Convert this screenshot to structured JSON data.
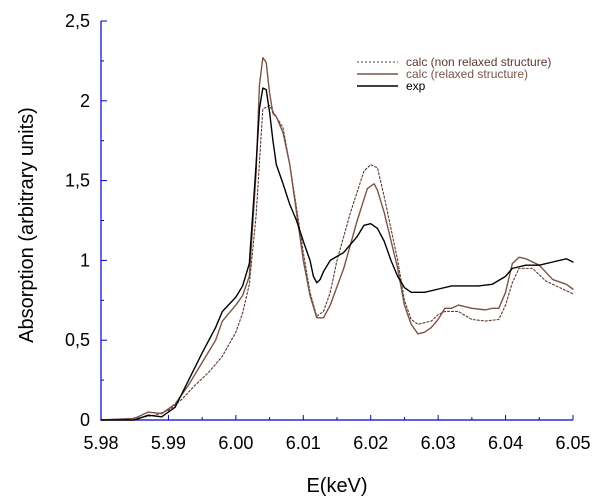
{
  "chart_data": {
    "type": "line",
    "xlabel": "E(keV)",
    "ylabel": "Absorption (arbitrary units)",
    "xlim": [
      5.98,
      6.05
    ],
    "ylim": [
      0,
      2.5
    ],
    "x_ticks": [
      {
        "value": 5.98,
        "label": "5.98"
      },
      {
        "value": 5.99,
        "label": "5.99"
      },
      {
        "value": 6.0,
        "label": "6.00"
      },
      {
        "value": 6.01,
        "label": "6.01"
      },
      {
        "value": 6.02,
        "label": "6.02"
      },
      {
        "value": 6.03,
        "label": "6.03"
      },
      {
        "value": 6.04,
        "label": "6.04"
      },
      {
        "value": 6.05,
        "label": "6.05"
      }
    ],
    "y_ticks": [
      {
        "value": 0,
        "label": "0"
      },
      {
        "value": 0.5,
        "label": "0,5"
      },
      {
        "value": 1,
        "label": "1"
      },
      {
        "value": 1.5,
        "label": "1,5"
      },
      {
        "value": 2,
        "label": "2"
      },
      {
        "value": 2.5,
        "label": "2,5"
      }
    ],
    "grid": false,
    "legend_position": "top-right",
    "axis_color": "#0000cc",
    "series": [
      {
        "name": "calc (non relaxed structure)",
        "style": "dotted",
        "color": "#5a3a2e",
        "points": [
          [
            5.98,
            0.0
          ],
          [
            5.985,
            0.01
          ],
          [
            5.988,
            0.03
          ],
          [
            5.99,
            0.06
          ],
          [
            5.992,
            0.13
          ],
          [
            5.994,
            0.22
          ],
          [
            5.996,
            0.3
          ],
          [
            5.998,
            0.4
          ],
          [
            6.0,
            0.55
          ],
          [
            6.001,
            0.67
          ],
          [
            6.002,
            0.85
          ],
          [
            6.003,
            1.28
          ],
          [
            6.004,
            1.95
          ],
          [
            6.005,
            1.97
          ],
          [
            6.006,
            1.9
          ],
          [
            6.007,
            1.83
          ],
          [
            6.008,
            1.6
          ],
          [
            6.009,
            1.33
          ],
          [
            6.01,
            1.05
          ],
          [
            6.011,
            0.8
          ],
          [
            6.012,
            0.65
          ],
          [
            6.013,
            0.68
          ],
          [
            6.014,
            0.8
          ],
          [
            6.015,
            1.0
          ],
          [
            6.017,
            1.3
          ],
          [
            6.019,
            1.56
          ],
          [
            6.02,
            1.6
          ],
          [
            6.021,
            1.58
          ],
          [
            6.022,
            1.4
          ],
          [
            6.024,
            1.0
          ],
          [
            6.025,
            0.75
          ],
          [
            6.026,
            0.63
          ],
          [
            6.027,
            0.6
          ],
          [
            6.029,
            0.62
          ],
          [
            6.03,
            0.66
          ],
          [
            6.031,
            0.68
          ],
          [
            6.033,
            0.68
          ],
          [
            6.035,
            0.63
          ],
          [
            6.037,
            0.62
          ],
          [
            6.039,
            0.63
          ],
          [
            6.04,
            0.72
          ],
          [
            6.041,
            0.86
          ],
          [
            6.042,
            0.95
          ],
          [
            6.044,
            0.95
          ],
          [
            6.046,
            0.87
          ],
          [
            6.048,
            0.83
          ],
          [
            6.05,
            0.79
          ]
        ]
      },
      {
        "name": "calc (relaxed structure)",
        "style": "solid",
        "color": "#7a5448",
        "points": [
          [
            5.98,
            0.0
          ],
          [
            5.985,
            0.01
          ],
          [
            5.987,
            0.05
          ],
          [
            5.989,
            0.04
          ],
          [
            5.991,
            0.1
          ],
          [
            5.993,
            0.22
          ],
          [
            5.995,
            0.36
          ],
          [
            5.997,
            0.5
          ],
          [
            5.998,
            0.62
          ],
          [
            6.0,
            0.72
          ],
          [
            6.001,
            0.78
          ],
          [
            6.002,
            0.9
          ],
          [
            6.003,
            1.55
          ],
          [
            6.0035,
            2.1
          ],
          [
            6.004,
            2.27
          ],
          [
            6.0045,
            2.24
          ],
          [
            6.005,
            2.05
          ],
          [
            6.0055,
            1.92
          ],
          [
            6.006,
            1.9
          ],
          [
            6.007,
            1.8
          ],
          [
            6.008,
            1.6
          ],
          [
            6.009,
            1.3
          ],
          [
            6.01,
            1.0
          ],
          [
            6.011,
            0.78
          ],
          [
            6.012,
            0.64
          ],
          [
            6.013,
            0.64
          ],
          [
            6.014,
            0.72
          ],
          [
            6.016,
            0.95
          ],
          [
            6.018,
            1.25
          ],
          [
            6.0195,
            1.45
          ],
          [
            6.0205,
            1.48
          ],
          [
            6.021,
            1.44
          ],
          [
            6.022,
            1.3
          ],
          [
            6.024,
            0.95
          ],
          [
            6.025,
            0.72
          ],
          [
            6.026,
            0.6
          ],
          [
            6.027,
            0.54
          ],
          [
            6.028,
            0.55
          ],
          [
            6.029,
            0.58
          ],
          [
            6.03,
            0.63
          ],
          [
            6.031,
            0.7
          ],
          [
            6.032,
            0.7
          ],
          [
            6.033,
            0.72
          ],
          [
            6.035,
            0.7
          ],
          [
            6.037,
            0.69
          ],
          [
            6.038,
            0.7
          ],
          [
            6.039,
            0.7
          ],
          [
            6.04,
            0.8
          ],
          [
            6.041,
            0.98
          ],
          [
            6.042,
            1.02
          ],
          [
            6.043,
            1.01
          ],
          [
            6.045,
            0.97
          ],
          [
            6.047,
            0.88
          ],
          [
            6.049,
            0.85
          ],
          [
            6.05,
            0.82
          ]
        ]
      },
      {
        "name": "exp",
        "style": "solid",
        "color": "#000000",
        "points": [
          [
            5.98,
            0.0
          ],
          [
            5.985,
            0.0
          ],
          [
            5.987,
            0.03
          ],
          [
            5.989,
            0.02
          ],
          [
            5.991,
            0.08
          ],
          [
            5.993,
            0.25
          ],
          [
            5.995,
            0.42
          ],
          [
            5.997,
            0.58
          ],
          [
            5.998,
            0.68
          ],
          [
            6.0,
            0.77
          ],
          [
            6.001,
            0.84
          ],
          [
            6.002,
            0.98
          ],
          [
            6.003,
            1.6
          ],
          [
            6.0035,
            1.95
          ],
          [
            6.004,
            2.08
          ],
          [
            6.0045,
            2.07
          ],
          [
            6.005,
            1.93
          ],
          [
            6.0055,
            1.75
          ],
          [
            6.006,
            1.6
          ],
          [
            6.007,
            1.48
          ],
          [
            6.008,
            1.35
          ],
          [
            6.009,
            1.25
          ],
          [
            6.01,
            1.12
          ],
          [
            6.011,
            1.0
          ],
          [
            6.0115,
            0.9
          ],
          [
            6.012,
            0.86
          ],
          [
            6.0125,
            0.88
          ],
          [
            6.013,
            0.93
          ],
          [
            6.014,
            1.0
          ],
          [
            6.016,
            1.05
          ],
          [
            6.018,
            1.15
          ],
          [
            6.019,
            1.22
          ],
          [
            6.02,
            1.23
          ],
          [
            6.021,
            1.2
          ],
          [
            6.022,
            1.12
          ],
          [
            6.023,
            1.0
          ],
          [
            6.024,
            0.9
          ],
          [
            6.025,
            0.83
          ],
          [
            6.026,
            0.8
          ],
          [
            6.028,
            0.8
          ],
          [
            6.03,
            0.82
          ],
          [
            6.032,
            0.84
          ],
          [
            6.034,
            0.84
          ],
          [
            6.036,
            0.84
          ],
          [
            6.038,
            0.85
          ],
          [
            6.04,
            0.9
          ],
          [
            6.041,
            0.95
          ],
          [
            6.043,
            0.97
          ],
          [
            6.045,
            0.97
          ],
          [
            6.047,
            0.99
          ],
          [
            6.049,
            1.01
          ],
          [
            6.05,
            0.99
          ]
        ]
      }
    ]
  }
}
